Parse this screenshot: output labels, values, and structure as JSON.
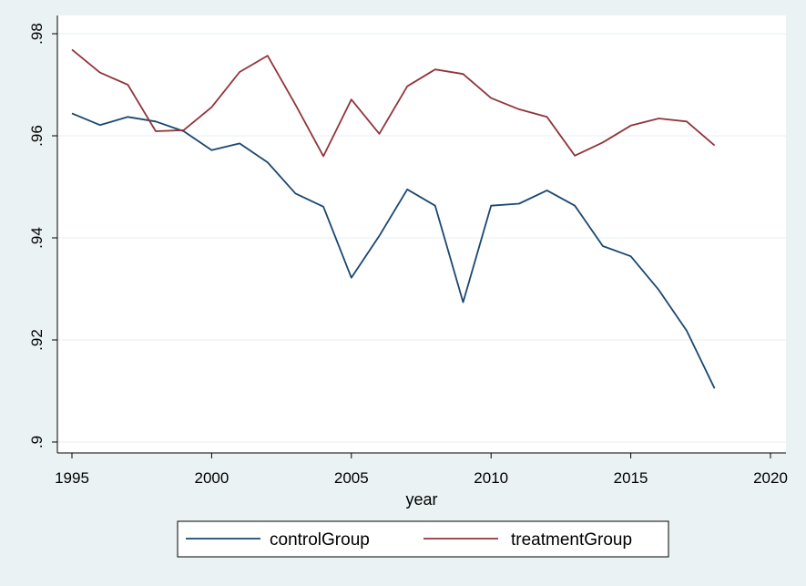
{
  "chart_data": {
    "type": "line",
    "title": "",
    "xlabel": "year",
    "ylabel": "",
    "xlim": [
      1995,
      2020
    ],
    "ylim": [
      0.9,
      0.98
    ],
    "x_ticks": [
      {
        "value": 1995,
        "label": "1995"
      },
      {
        "value": 2000,
        "label": "2000"
      },
      {
        "value": 2005,
        "label": "2005"
      },
      {
        "value": 2010,
        "label": "2010"
      },
      {
        "value": 2015,
        "label": "2015"
      },
      {
        "value": 2020,
        "label": "2020"
      }
    ],
    "y_ticks": [
      {
        "value": 0.9,
        "label": ".9"
      },
      {
        "value": 0.92,
        "label": ".92"
      },
      {
        "value": 0.94,
        "label": ".94"
      },
      {
        "value": 0.96,
        "label": ".96"
      },
      {
        "value": 0.98,
        "label": ".98"
      }
    ],
    "grid": "horizontal",
    "legend_position": "bottom",
    "x": [
      1995,
      1996,
      1997,
      1998,
      1999,
      2000,
      2001,
      2002,
      2003,
      2004,
      2005,
      2006,
      2007,
      2008,
      2009,
      2010,
      2011,
      2012,
      2013,
      2014,
      2015,
      2016,
      2017,
      2018
    ],
    "series": [
      {
        "name": "controlGroup",
        "color": "#1a476f",
        "values": [
          0.9644,
          0.9621,
          0.9637,
          0.9628,
          0.9609,
          0.9572,
          0.9585,
          0.9548,
          0.9487,
          0.9461,
          0.9322,
          0.9404,
          0.9495,
          0.9463,
          0.9274,
          0.9463,
          0.9467,
          0.9493,
          0.9463,
          0.9384,
          0.9364,
          0.9298,
          0.9218,
          0.9105
        ]
      },
      {
        "name": "treatmentGroup",
        "color": "#90353b",
        "values": [
          0.9769,
          0.9724,
          0.97,
          0.9609,
          0.9611,
          0.9656,
          0.9725,
          0.9757,
          0.9661,
          0.956,
          0.9671,
          0.9604,
          0.9697,
          0.973,
          0.9721,
          0.9674,
          0.9652,
          0.9637,
          0.9561,
          0.9587,
          0.962,
          0.9634,
          0.9628,
          0.9581
        ]
      }
    ]
  }
}
